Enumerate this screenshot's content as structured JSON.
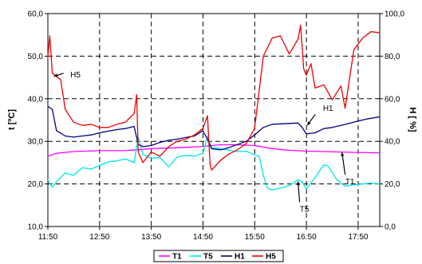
{
  "chart_data": {
    "type": "line",
    "xlabel": "",
    "ylabel": "t  [ºC]",
    "y2label": "H  [ %]",
    "x_ticks": [
      "11:50",
      "12:50",
      "13:50",
      "14:50",
      "15:50",
      "16:50",
      "17:50"
    ],
    "y_ticks": [
      "10,0",
      "20,0",
      "30,0",
      "40,0",
      "50,0",
      "60,0"
    ],
    "y2_ticks": [
      "0,0",
      "20,0",
      "40,0",
      "60,0",
      "80,0",
      "100,0"
    ],
    "xlim_hours": [
      11.833,
      18.25
    ],
    "ylim": [
      10,
      60
    ],
    "y2lim": [
      0,
      100
    ],
    "grid": true,
    "legend_position": "bottom",
    "series": [
      {
        "name": "T1",
        "color": "#ff00ff",
        "axis": "left",
        "points": [
          [
            11.83,
            26.5
          ],
          [
            12.0,
            27.2
          ],
          [
            12.33,
            27.6
          ],
          [
            12.83,
            27.8
          ],
          [
            13.3,
            27.8
          ],
          [
            13.67,
            28.1
          ],
          [
            13.83,
            28.3
          ],
          [
            14.17,
            28.4
          ],
          [
            14.5,
            28.6
          ],
          [
            14.83,
            28.8
          ],
          [
            15.17,
            29.2
          ],
          [
            15.5,
            29.2
          ],
          [
            15.83,
            29.0
          ],
          [
            16.17,
            28.3
          ],
          [
            16.5,
            27.9
          ],
          [
            16.83,
            27.7
          ],
          [
            17.17,
            27.6
          ],
          [
            17.5,
            27.5
          ],
          [
            17.83,
            27.4
          ],
          [
            18.25,
            27.3
          ]
        ]
      },
      {
        "name": "T5",
        "color": "#00e5e5",
        "axis": "left",
        "points": [
          [
            11.83,
            21.0
          ],
          [
            11.92,
            19.2
          ],
          [
            12.0,
            20.5
          ],
          [
            12.17,
            22.6
          ],
          [
            12.33,
            22.0
          ],
          [
            12.5,
            23.8
          ],
          [
            12.67,
            23.5
          ],
          [
            12.83,
            24.3
          ],
          [
            13.0,
            25.2
          ],
          [
            13.17,
            25.4
          ],
          [
            13.33,
            25.9
          ],
          [
            13.5,
            25.0
          ],
          [
            13.58,
            31.0
          ],
          [
            13.67,
            27.0
          ],
          [
            13.83,
            26.0
          ],
          [
            14.0,
            26.2
          ],
          [
            14.17,
            24.0
          ],
          [
            14.33,
            26.3
          ],
          [
            14.5,
            26.7
          ],
          [
            14.67,
            26.5
          ],
          [
            14.83,
            27.2
          ],
          [
            14.92,
            31.2
          ],
          [
            15.0,
            28.5
          ],
          [
            15.17,
            28.3
          ],
          [
            15.33,
            27.9
          ],
          [
            15.5,
            27.6
          ],
          [
            15.67,
            27.7
          ],
          [
            15.83,
            26.8
          ],
          [
            15.92,
            26.5
          ],
          [
            16.0,
            22.0
          ],
          [
            16.08,
            19.0
          ],
          [
            16.17,
            18.6
          ],
          [
            16.33,
            19.0
          ],
          [
            16.5,
            19.6
          ],
          [
            16.67,
            21.0
          ],
          [
            16.75,
            20.5
          ],
          [
            16.83,
            18.8
          ],
          [
            17.0,
            21.5
          ],
          [
            17.17,
            24.5
          ],
          [
            17.25,
            24.2
          ],
          [
            17.42,
            21.0
          ],
          [
            17.58,
            19.5
          ],
          [
            17.75,
            19.8
          ],
          [
            17.92,
            20.0
          ],
          [
            18.08,
            20.2
          ],
          [
            18.25,
            20.0
          ]
        ]
      },
      {
        "name": "H1",
        "color": "#000080",
        "axis": "right",
        "points": [
          [
            11.83,
            56.5
          ],
          [
            11.92,
            55.0
          ],
          [
            12.0,
            45.0
          ],
          [
            12.17,
            42.5
          ],
          [
            12.33,
            42.0
          ],
          [
            12.5,
            42.5
          ],
          [
            12.67,
            43.0
          ],
          [
            12.83,
            44.0
          ],
          [
            13.0,
            44.8
          ],
          [
            13.17,
            45.5
          ],
          [
            13.33,
            46.0
          ],
          [
            13.5,
            47.0
          ],
          [
            13.58,
            38.5
          ],
          [
            13.67,
            37.5
          ],
          [
            13.83,
            38.0
          ],
          [
            14.0,
            39.5
          ],
          [
            14.17,
            40.5
          ],
          [
            14.33,
            41.0
          ],
          [
            14.5,
            41.8
          ],
          [
            14.67,
            42.5
          ],
          [
            14.83,
            45.0
          ],
          [
            14.92,
            41.0
          ],
          [
            15.0,
            36.5
          ],
          [
            15.17,
            36.0
          ],
          [
            15.33,
            37.0
          ],
          [
            15.5,
            38.5
          ],
          [
            15.67,
            40.0
          ],
          [
            15.83,
            43.0
          ],
          [
            16.0,
            46.5
          ],
          [
            16.17,
            48.0
          ],
          [
            16.33,
            48.2
          ],
          [
            16.5,
            48.4
          ],
          [
            16.67,
            48.6
          ],
          [
            16.75,
            46.5
          ],
          [
            16.83,
            43.5
          ],
          [
            17.0,
            44.0
          ],
          [
            17.17,
            46.0
          ],
          [
            17.33,
            46.5
          ],
          [
            17.5,
            47.5
          ],
          [
            17.67,
            48.5
          ],
          [
            17.83,
            49.5
          ],
          [
            18.0,
            50.5
          ],
          [
            18.25,
            51.5
          ]
        ]
      },
      {
        "name": "H5",
        "color": "#ee0000",
        "axis": "right",
        "points": [
          [
            11.83,
            79.0
          ],
          [
            11.87,
            89.5
          ],
          [
            11.92,
            72.0
          ],
          [
            12.0,
            70.5
          ],
          [
            12.08,
            69.0
          ],
          [
            12.17,
            55.0
          ],
          [
            12.33,
            49.0
          ],
          [
            12.5,
            47.5
          ],
          [
            12.67,
            48.0
          ],
          [
            12.83,
            46.5
          ],
          [
            13.0,
            46.5
          ],
          [
            13.17,
            48.0
          ],
          [
            13.33,
            49.0
          ],
          [
            13.5,
            53.0
          ],
          [
            13.55,
            62.0
          ],
          [
            13.58,
            35.0
          ],
          [
            13.67,
            30.0
          ],
          [
            13.83,
            35.0
          ],
          [
            14.0,
            33.0
          ],
          [
            14.17,
            37.5
          ],
          [
            14.33,
            40.0
          ],
          [
            14.5,
            41.0
          ],
          [
            14.67,
            43.0
          ],
          [
            14.83,
            46.0
          ],
          [
            14.92,
            52.0
          ],
          [
            14.97,
            29.0
          ],
          [
            15.0,
            26.5
          ],
          [
            15.17,
            31.0
          ],
          [
            15.33,
            34.0
          ],
          [
            15.5,
            36.0
          ],
          [
            15.67,
            39.0
          ],
          [
            15.83,
            46.0
          ],
          [
            16.0,
            80.0
          ],
          [
            16.17,
            88.5
          ],
          [
            16.33,
            89.5
          ],
          [
            16.5,
            81.0
          ],
          [
            16.67,
            88.0
          ],
          [
            16.72,
            94.5
          ],
          [
            16.78,
            74.0
          ],
          [
            16.83,
            71.0
          ],
          [
            16.92,
            76.5
          ],
          [
            17.0,
            65.0
          ],
          [
            17.17,
            66.5
          ],
          [
            17.33,
            59.5
          ],
          [
            17.5,
            66.0
          ],
          [
            17.58,
            55.5
          ],
          [
            17.75,
            83.0
          ],
          [
            17.92,
            88.5
          ],
          [
            18.08,
            91.5
          ],
          [
            18.25,
            91.0
          ]
        ]
      }
    ],
    "annotations": [
      {
        "text": "H5",
        "series": "H5",
        "at": [
          11.95,
          70.5
        ]
      },
      {
        "text": "H1",
        "series": "H1",
        "at": [
          16.85,
          47.5
        ]
      },
      {
        "text": "T1",
        "series": "T1",
        "at": [
          17.52,
          27.4
        ]
      },
      {
        "text": "T5",
        "series": "T5",
        "at": [
          16.67,
          20.6
        ]
      }
    ]
  }
}
